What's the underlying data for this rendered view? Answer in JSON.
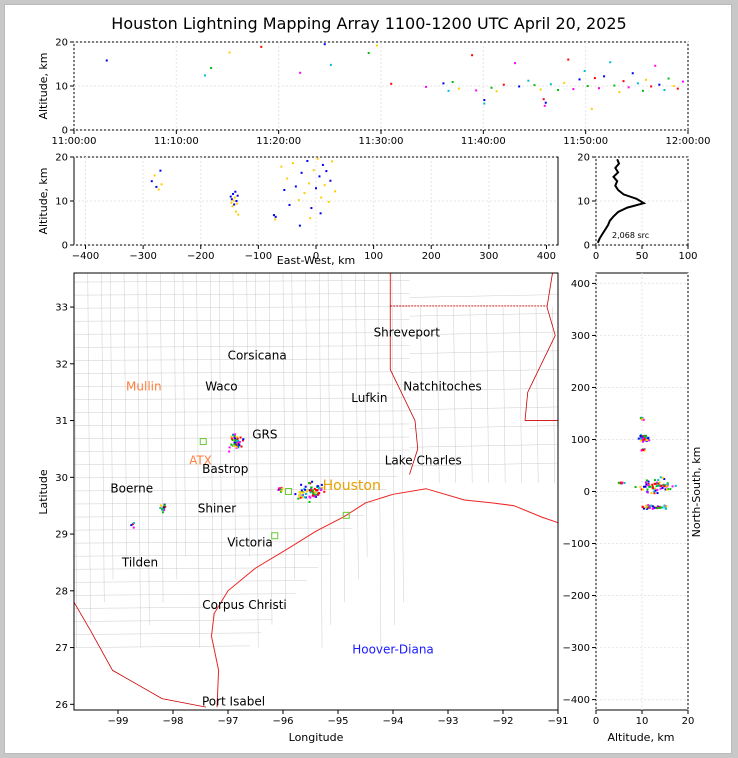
{
  "title": "Houston Lightning Mapping Array 1100-1200 UTC April 20, 2025",
  "colors": {
    "series": [
      "#0000ee",
      "#00bcd4",
      "#00c000",
      "#ffcc00",
      "#ff0000",
      "#ff00ff"
    ],
    "coast": "#ee2222",
    "state_border": "#cc0000",
    "county": "#cccccc",
    "city_text": "#000000",
    "radar_site": "#ff7f3f",
    "houston": "#e8a000",
    "offshore": "#1a1aff",
    "marker": "#66cc33"
  },
  "chart_data": [
    {
      "id": "time_altitude",
      "type": "scatter",
      "ylabel": "Altitude, km",
      "xlabel": "",
      "xlim": [
        "11:00:00",
        "12:00:00"
      ],
      "ylim": [
        0,
        20
      ],
      "x_ticks": [
        "11:00:00",
        "11:10:00",
        "11:20:00",
        "11:30:00",
        "11:40:00",
        "11:50:00",
        "12:00:00"
      ],
      "y_ticks": [
        "0",
        "10",
        "20"
      ],
      "grid": true,
      "points": [
        {
          "t": 3.2,
          "z": 15.8
        },
        {
          "t": 12.8,
          "z": 12.4
        },
        {
          "t": 13.4,
          "z": 14.1
        },
        {
          "t": 15.2,
          "z": 17.6
        },
        {
          "t": 18.3,
          "z": 18.9
        },
        {
          "t": 22.1,
          "z": 13.0
        },
        {
          "t": 24.5,
          "z": 19.5
        },
        {
          "t": 25.1,
          "z": 14.8
        },
        {
          "t": 28.8,
          "z": 17.5
        },
        {
          "t": 29.6,
          "z": 19.2
        },
        {
          "t": 31.0,
          "z": 10.5
        },
        {
          "t": 34.4,
          "z": 9.8
        },
        {
          "t": 36.1,
          "z": 10.6
        },
        {
          "t": 36.6,
          "z": 8.9
        },
        {
          "t": 37.0,
          "z": 10.9
        },
        {
          "t": 37.6,
          "z": 9.4
        },
        {
          "t": 38.9,
          "z": 17.0
        },
        {
          "t": 39.3,
          "z": 9.0
        },
        {
          "t": 40.1,
          "z": 6.8
        },
        {
          "t": 40.1,
          "z": 6.0
        },
        {
          "t": 40.8,
          "z": 9.6
        },
        {
          "t": 41.3,
          "z": 8.8
        },
        {
          "t": 42.0,
          "z": 10.3
        },
        {
          "t": 43.1,
          "z": 15.2
        },
        {
          "t": 43.5,
          "z": 9.9
        },
        {
          "t": 44.4,
          "z": 11.2
        },
        {
          "t": 45.0,
          "z": 10.2
        },
        {
          "t": 45.6,
          "z": 9.2
        },
        {
          "t": 45.9,
          "z": 7.0
        },
        {
          "t": 46.0,
          "z": 5.5
        },
        {
          "t": 46.1,
          "z": 6.2
        },
        {
          "t": 46.6,
          "z": 10.4
        },
        {
          "t": 47.3,
          "z": 9.1
        },
        {
          "t": 47.9,
          "z": 10.7
        },
        {
          "t": 48.3,
          "z": 16.0
        },
        {
          "t": 48.8,
          "z": 9.3
        },
        {
          "t": 49.4,
          "z": 11.5
        },
        {
          "t": 49.9,
          "z": 13.4
        },
        {
          "t": 50.2,
          "z": 10.0
        },
        {
          "t": 50.6,
          "z": 4.8
        },
        {
          "t": 50.9,
          "z": 11.8
        },
        {
          "t": 51.3,
          "z": 9.5
        },
        {
          "t": 51.8,
          "z": 12.2
        },
        {
          "t": 52.4,
          "z": 15.4
        },
        {
          "t": 52.8,
          "z": 10.1
        },
        {
          "t": 53.3,
          "z": 8.6
        },
        {
          "t": 53.7,
          "z": 11.1
        },
        {
          "t": 54.2,
          "z": 9.7
        },
        {
          "t": 54.6,
          "z": 12.9
        },
        {
          "t": 55.1,
          "z": 10.6
        },
        {
          "t": 55.6,
          "z": 8.9
        },
        {
          "t": 55.9,
          "z": 11.4
        },
        {
          "t": 56.4,
          "z": 9.9
        },
        {
          "t": 56.8,
          "z": 14.6
        },
        {
          "t": 57.2,
          "z": 10.3
        },
        {
          "t": 57.7,
          "z": 9.1
        },
        {
          "t": 58.1,
          "z": 11.7
        },
        {
          "t": 58.6,
          "z": 10.0
        },
        {
          "t": 59.0,
          "z": 9.4
        },
        {
          "t": 59.5,
          "z": 11.0
        }
      ]
    },
    {
      "id": "ew_altitude",
      "type": "scatter",
      "xlabel": "East-West, km",
      "ylabel": "Altitude, km",
      "xlim": [
        -420,
        420
      ],
      "ylim": [
        0,
        20
      ],
      "x_ticks": [
        "−400",
        "−300",
        "−200",
        "−100",
        "0",
        "100",
        "200",
        "300",
        "400"
      ],
      "y_ticks": [
        "0",
        "10",
        "20"
      ],
      "grid": true,
      "points": [
        {
          "x": -285,
          "z": 14.5
        },
        {
          "x": -280,
          "z": 15.8
        },
        {
          "x": -277,
          "z": 13.2
        },
        {
          "x": -273,
          "z": 12.6
        },
        {
          "x": -270,
          "z": 16.9
        },
        {
          "x": -268,
          "z": 13.8
        },
        {
          "x": -148,
          "z": 11.0
        },
        {
          "x": -147,
          "z": 9.6
        },
        {
          "x": -146,
          "z": 10.4
        },
        {
          "x": -145,
          "z": 8.8
        },
        {
          "x": -144,
          "z": 11.6
        },
        {
          "x": -143,
          "z": 10.1
        },
        {
          "x": -142,
          "z": 9.2
        },
        {
          "x": -141,
          "z": 10.8
        },
        {
          "x": -140,
          "z": 12.1
        },
        {
          "x": -139,
          "z": 7.6
        },
        {
          "x": -138,
          "z": 10.0
        },
        {
          "x": -137,
          "z": 9.4
        },
        {
          "x": -136,
          "z": 11.2
        },
        {
          "x": -135,
          "z": 6.9
        },
        {
          "x": -73,
          "z": 6.8
        },
        {
          "x": -71,
          "z": 5.8
        },
        {
          "x": -70,
          "z": 6.4
        },
        {
          "x": -60,
          "z": 17.8
        },
        {
          "x": -55,
          "z": 12.5
        },
        {
          "x": -50,
          "z": 15.1
        },
        {
          "x": -46,
          "z": 9.1
        },
        {
          "x": -40,
          "z": 18.6
        },
        {
          "x": -35,
          "z": 13.3
        },
        {
          "x": -30,
          "z": 10.2
        },
        {
          "x": -25,
          "z": 16.4
        },
        {
          "x": -20,
          "z": 11.8
        },
        {
          "x": -15,
          "z": 19.1
        },
        {
          "x": -12,
          "z": 14.0
        },
        {
          "x": -8,
          "z": 8.4
        },
        {
          "x": -4,
          "z": 17.0
        },
        {
          "x": 0,
          "z": 12.9
        },
        {
          "x": 3,
          "z": 19.6
        },
        {
          "x": 6,
          "z": 15.6
        },
        {
          "x": 9,
          "z": 10.8
        },
        {
          "x": 12,
          "z": 18.2
        },
        {
          "x": 15,
          "z": 13.6
        },
        {
          "x": 18,
          "z": 16.8
        },
        {
          "x": 22,
          "z": 9.8
        },
        {
          "x": 25,
          "z": 14.6
        },
        {
          "x": 28,
          "z": 19.0
        },
        {
          "x": -28,
          "z": 4.4
        },
        {
          "x": -10,
          "z": 6.1
        },
        {
          "x": 8,
          "z": 7.2
        },
        {
          "x": 33,
          "z": 12.2
        }
      ]
    },
    {
      "id": "altitude_histogram",
      "type": "line",
      "xlim": [
        0,
        100
      ],
      "ylim": [
        0,
        20
      ],
      "x_ticks": [
        "0",
        "50",
        "100"
      ],
      "y_ticks": [
        "0",
        "10",
        "20"
      ],
      "annotation": "2,068 src",
      "grid": true,
      "profile": [
        {
          "count": 2,
          "z": 0.5
        },
        {
          "count": 4,
          "z": 1.5
        },
        {
          "count": 7,
          "z": 2.5
        },
        {
          "count": 10,
          "z": 3.5
        },
        {
          "count": 13,
          "z": 4.5
        },
        {
          "count": 15,
          "z": 5.5
        },
        {
          "count": 19,
          "z": 6.5
        },
        {
          "count": 24,
          "z": 7.5
        },
        {
          "count": 34,
          "z": 8.5
        },
        {
          "count": 52,
          "z": 9.5
        },
        {
          "count": 44,
          "z": 10.5
        },
        {
          "count": 30,
          "z": 11.5
        },
        {
          "count": 24,
          "z": 12.5
        },
        {
          "count": 21,
          "z": 13.5
        },
        {
          "count": 23,
          "z": 14.5
        },
        {
          "count": 19,
          "z": 15.5
        },
        {
          "count": 24,
          "z": 16.5
        },
        {
          "count": 21,
          "z": 17.5
        },
        {
          "count": 25,
          "z": 18.5
        },
        {
          "count": 23,
          "z": 19.5
        }
      ]
    },
    {
      "id": "plan_view",
      "type": "scatter",
      "xlabel": "Longitude",
      "ylabel": "Latitude",
      "xlim": [
        -99.8,
        -91.0
      ],
      "ylim": [
        25.9,
        33.6
      ],
      "x_ticks": [
        -99,
        -98,
        -97,
        -96,
        -95,
        -94,
        -93,
        -92,
        -91
      ],
      "x_tick_labels": [
        "−99",
        "−98",
        "−97",
        "−96",
        "−95",
        "−94",
        "−93",
        "−92",
        "−91"
      ],
      "y_ticks": [
        26,
        27,
        28,
        29,
        30,
        31,
        32,
        33
      ],
      "y_tick_labels": [
        "26",
        "27",
        "28",
        "29",
        "30",
        "31",
        "32",
        "33"
      ],
      "cities": [
        {
          "name": "Shreveport",
          "lon": -93.75,
          "lat": 32.55,
          "style": "city"
        },
        {
          "name": "Corsicana",
          "lon": -96.47,
          "lat": 32.15,
          "style": "city"
        },
        {
          "name": "Natchitoches",
          "lon": -93.1,
          "lat": 31.6,
          "style": "city"
        },
        {
          "name": "Mullin",
          "lon": -98.53,
          "lat": 31.6,
          "style": "radar"
        },
        {
          "name": "Waco",
          "lon": -97.12,
          "lat": 31.6,
          "style": "city"
        },
        {
          "name": "Lufkin",
          "lon": -94.43,
          "lat": 31.4,
          "style": "city"
        },
        {
          "name": "GRS",
          "lon": -96.33,
          "lat": 30.75,
          "style": "city"
        },
        {
          "name": "ATX",
          "lon": -97.5,
          "lat": 30.3,
          "style": "radar"
        },
        {
          "name": "Bastrop",
          "lon": -97.05,
          "lat": 30.15,
          "style": "city"
        },
        {
          "name": "Lake Charles",
          "lon": -93.45,
          "lat": 30.3,
          "style": "city"
        },
        {
          "name": "Houston",
          "lon": -94.75,
          "lat": 29.85,
          "style": "houston"
        },
        {
          "name": "Boerne",
          "lon": -98.75,
          "lat": 29.8,
          "style": "city"
        },
        {
          "name": "Shiner",
          "lon": -97.2,
          "lat": 29.45,
          "style": "city"
        },
        {
          "name": "Victoria",
          "lon": -96.6,
          "lat": 28.85,
          "style": "city"
        },
        {
          "name": "Tilden",
          "lon": -98.6,
          "lat": 28.5,
          "style": "city"
        },
        {
          "name": "Corpus Christi",
          "lon": -96.7,
          "lat": 27.75,
          "style": "city"
        },
        {
          "name": "Hoover-Diana",
          "lon": -94.0,
          "lat": 26.97,
          "style": "offshore"
        },
        {
          "name": "Port Isabel",
          "lon": -96.9,
          "lat": 26.05,
          "style": "city"
        }
      ],
      "markers": [
        {
          "lon": -97.45,
          "lat": 30.63
        },
        {
          "lon": -95.9,
          "lat": 29.75
        },
        {
          "lon": -94.85,
          "lat": 29.33
        },
        {
          "lon": -96.15,
          "lat": 28.97
        }
      ],
      "clusters": [
        {
          "lon": -96.85,
          "lat": 30.6,
          "spread": 0.12,
          "n": 40
        },
        {
          "lon": -98.18,
          "lat": 29.45,
          "spread": 0.06,
          "n": 14
        },
        {
          "lon": -96.05,
          "lat": 29.78,
          "spread": 0.05,
          "n": 10
        },
        {
          "lon": -95.5,
          "lat": 29.75,
          "spread": 0.28,
          "n": 70
        },
        {
          "lon": -98.7,
          "lat": 29.15,
          "spread": 0.06,
          "n": 4
        },
        {
          "lon": -96.9,
          "lat": 30.72,
          "spread": 0.05,
          "n": 8
        }
      ]
    },
    {
      "id": "ns_altitude",
      "type": "scatter",
      "xlabel": "Altitude, km",
      "ylabel": "North-South, km",
      "xlim": [
        0,
        20
      ],
      "ylim": [
        -420,
        420
      ],
      "x_ticks": [
        "0",
        "10",
        "20"
      ],
      "y_ticks": [
        "−400",
        "−300",
        "−200",
        "−100",
        "0",
        "100",
        "200",
        "300",
        "400"
      ],
      "grid": true,
      "clusters": [
        {
          "z": 10.5,
          "y": 102,
          "spreadZ": 1.4,
          "spreadY": 8,
          "n": 60
        },
        {
          "z": 10.2,
          "y": 80,
          "spreadZ": 1.0,
          "spreadY": 3,
          "n": 10
        },
        {
          "z": 10.0,
          "y": 140,
          "spreadZ": 0.6,
          "spreadY": 6,
          "n": 6
        },
        {
          "z": 5.5,
          "y": 16,
          "spreadZ": 0.9,
          "spreadY": 3,
          "n": 12
        },
        {
          "z": 13.0,
          "y": 10,
          "spreadZ": 5.5,
          "spreadY": 20,
          "n": 70
        },
        {
          "z": 12.5,
          "y": -30,
          "spreadZ": 4.5,
          "spreadY": 5,
          "n": 40
        }
      ]
    }
  ]
}
